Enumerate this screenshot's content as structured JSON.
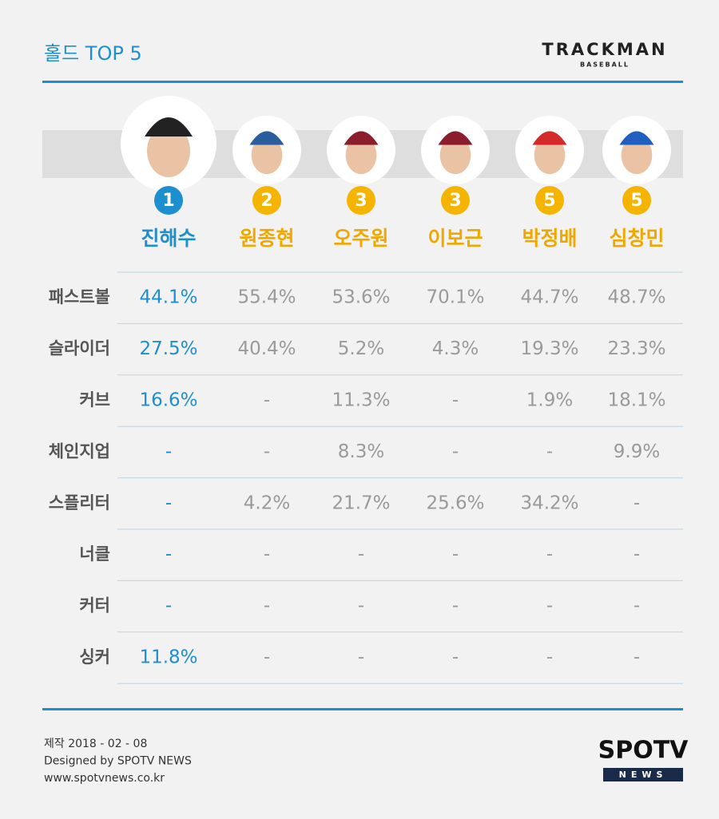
{
  "header": {
    "title": "홀드 TOP 5",
    "logo": "TRACKMAN",
    "logo_sub": "BASEBALL"
  },
  "players": [
    {
      "rank": "1",
      "name": "진해수"
    },
    {
      "rank": "2",
      "name": "원종현"
    },
    {
      "rank": "3",
      "name": "오주원"
    },
    {
      "rank": "3",
      "name": "이보근"
    },
    {
      "rank": "5",
      "name": "박정배"
    },
    {
      "rank": "5",
      "name": "심창민"
    }
  ],
  "table": {
    "rows": [
      {
        "label": "패스트볼",
        "cells": [
          "44.1%",
          "55.4%",
          "53.6%",
          "70.1%",
          "44.7%",
          "48.7%"
        ]
      },
      {
        "label": "슬라이더",
        "cells": [
          "27.5%",
          "40.4%",
          "5.2%",
          "4.3%",
          "19.3%",
          "23.3%"
        ]
      },
      {
        "label": "커브",
        "cells": [
          "16.6%",
          "-",
          "11.3%",
          "-",
          "1.9%",
          "18.1%"
        ]
      },
      {
        "label": "체인지업",
        "cells": [
          "-",
          "-",
          "8.3%",
          "-",
          "-",
          "9.9%"
        ]
      },
      {
        "label": "스플리터",
        "cells": [
          "-",
          "4.2%",
          "21.7%",
          "25.6%",
          "34.2%",
          "-"
        ]
      },
      {
        "label": "너클",
        "cells": [
          "-",
          "-",
          "-",
          "-",
          "-",
          "-"
        ]
      },
      {
        "label": "커터",
        "cells": [
          "-",
          "-",
          "-",
          "-",
          "-",
          "-"
        ]
      },
      {
        "label": "싱커",
        "cells": [
          "11.8%",
          "-",
          "-",
          "-",
          "-",
          "-"
        ]
      }
    ]
  },
  "footer": {
    "lines": [
      "제작 2018 - 02 - 08",
      "Designed by SPOTV NEWS",
      "www.spotvnews.co.kr"
    ],
    "brand": "SPOTV",
    "brand_sub": "NEWS"
  }
}
